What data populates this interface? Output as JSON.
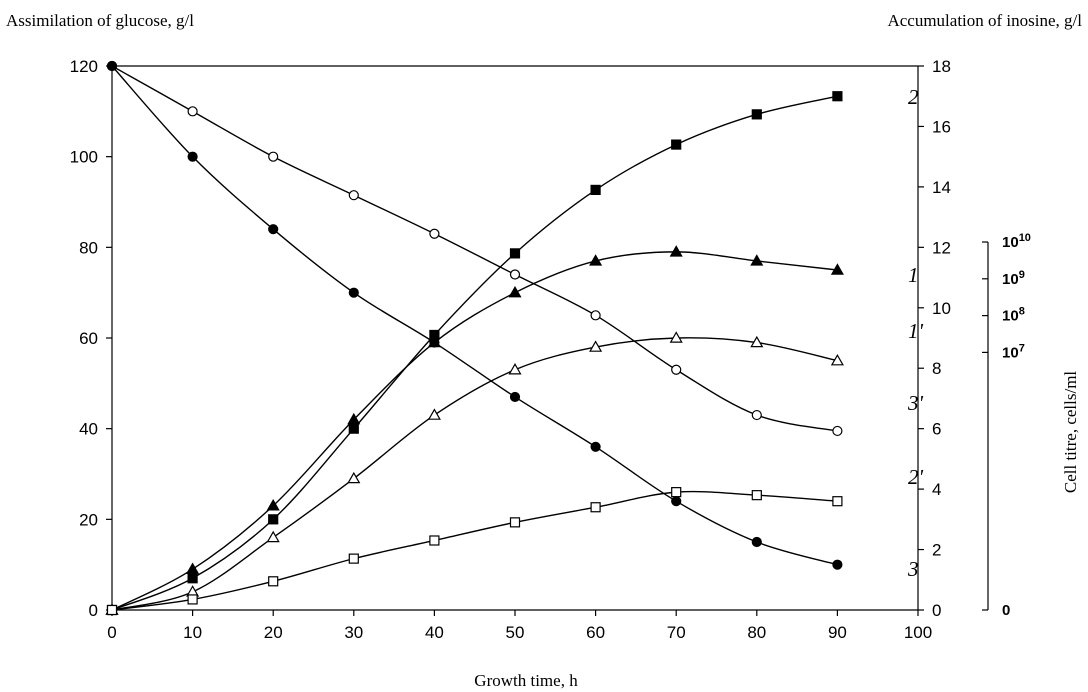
{
  "chart_data": {
    "type": "line",
    "title": "",
    "xlabel": "Growth time, h",
    "ylabel_left": "Assimilation of glucose, g/l",
    "ylabel_right": "Accumulation of inosine, g/l",
    "ylabel_right2": "Cell titre, cells/ml",
    "xlim": [
      0,
      100
    ],
    "ylim_left": [
      0,
      120
    ],
    "ylim_right": [
      0,
      18
    ],
    "x_ticks": [
      "0",
      "10",
      "20",
      "30",
      "40",
      "50",
      "60",
      "70",
      "80",
      "90",
      "100"
    ],
    "y_left_ticks": [
      "0",
      "20",
      "40",
      "60",
      "80",
      "100",
      "120"
    ],
    "y_right_ticks": [
      "0",
      "2",
      "4",
      "6",
      "8",
      "10",
      "12",
      "14",
      "16",
      "18"
    ],
    "cell_titre_ticks": [
      {
        "label": "0",
        "base": "",
        "exp": "",
        "value": 0
      },
      {
        "label": "10^7",
        "base": "10",
        "exp": "7",
        "value": 7
      },
      {
        "label": "10^8",
        "base": "10",
        "exp": "8",
        "value": 8
      },
      {
        "label": "10^9",
        "base": "10",
        "exp": "9",
        "value": 9
      },
      {
        "label": "10^10",
        "base": "10",
        "exp": "10",
        "value": 10
      }
    ],
    "grid": false,
    "series": [
      {
        "name": "2",
        "marker": "square-filled",
        "axis": "right",
        "x": [
          0,
          10,
          20,
          30,
          40,
          50,
          60,
          70,
          80,
          90
        ],
        "values": [
          0,
          1.05,
          3.0,
          6.0,
          9.1,
          11.8,
          13.9,
          15.4,
          16.4,
          17.0
        ]
      },
      {
        "name": "1",
        "marker": "triangle-filled",
        "axis": "left",
        "x": [
          0,
          10,
          20,
          30,
          40,
          50,
          60,
          70,
          80,
          90
        ],
        "values": [
          0,
          9,
          23,
          42,
          59,
          70,
          77,
          79,
          77,
          75
        ]
      },
      {
        "name": "1'",
        "marker": "triangle-open",
        "axis": "left",
        "x": [
          0,
          10,
          20,
          30,
          40,
          50,
          60,
          70,
          80,
          90
        ],
        "values": [
          0,
          4,
          16,
          29,
          43,
          53,
          58,
          60,
          59,
          55
        ]
      },
      {
        "name": "3'",
        "marker": "circle-open",
        "axis": "left",
        "x": [
          0,
          10,
          20,
          30,
          40,
          50,
          60,
          70,
          80,
          90
        ],
        "values": [
          120,
          110,
          100,
          91.5,
          83,
          74,
          65,
          53,
          43,
          39.5
        ]
      },
      {
        "name": "2'",
        "marker": "square-open",
        "axis": "right",
        "x": [
          0,
          10,
          20,
          30,
          40,
          50,
          60,
          70,
          80,
          90
        ],
        "values": [
          0,
          0.35,
          0.95,
          1.7,
          2.3,
          2.9,
          3.4,
          3.9,
          3.8,
          3.6
        ]
      },
      {
        "name": "3",
        "marker": "circle-filled",
        "axis": "left",
        "x": [
          0,
          10,
          20,
          30,
          40,
          50,
          60,
          70,
          80,
          90
        ],
        "values": [
          120,
          100,
          84,
          70,
          59,
          47,
          36,
          24,
          15,
          10
        ]
      }
    ]
  }
}
